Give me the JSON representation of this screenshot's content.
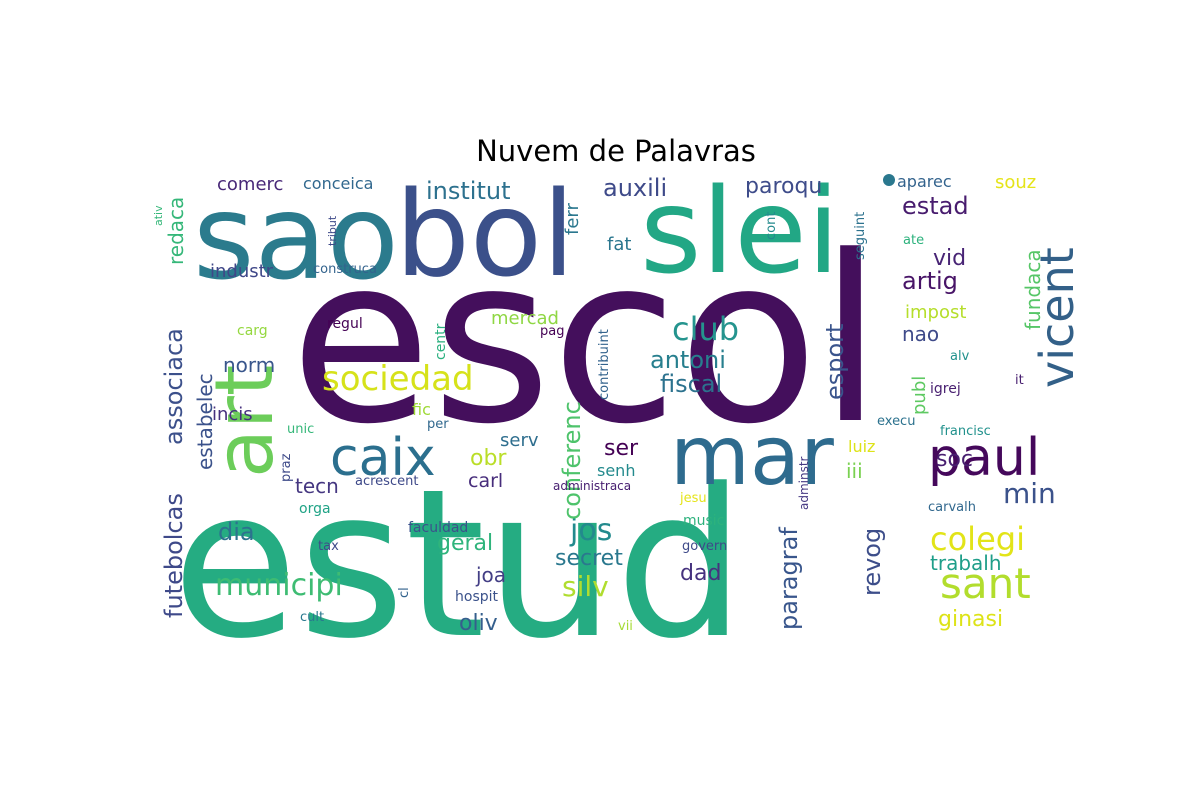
{
  "chart_data": {
    "type": "wordcloud",
    "title": "Nuvem de Palavras",
    "colormap": "viridis",
    "background": "#ffffff",
    "words": [
      {
        "text": "escol",
        "weight": 100,
        "color": "#440f5c",
        "vertical": false
      },
      {
        "text": "estud",
        "weight": 96,
        "color": "#25ac82",
        "vertical": false
      },
      {
        "text": "sao",
        "weight": 55,
        "color": "#2b7b8d",
        "vertical": false
      },
      {
        "text": "bol",
        "weight": 55,
        "color": "#3b508a",
        "vertical": false
      },
      {
        "text": "slei",
        "weight": 55,
        "color": "#22a785",
        "vertical": false
      },
      {
        "text": "mar",
        "weight": 48,
        "color": "#2e6b8e",
        "vertical": false
      },
      {
        "text": "art",
        "weight": 45,
        "color": "#6ccd5a",
        "vertical": true
      },
      {
        "text": "paul",
        "weight": 30,
        "color": "#45085b",
        "vertical": false
      },
      {
        "text": "caix",
        "weight": 30,
        "color": "#2b6f8e",
        "vertical": false
      },
      {
        "text": "vicent",
        "weight": 28,
        "color": "#336088",
        "vertical": true
      },
      {
        "text": "sant",
        "weight": 25,
        "color": "#b2dd2d",
        "vertical": false
      },
      {
        "text": "sociedad",
        "weight": 20,
        "color": "#d6e21a",
        "vertical": false
      },
      {
        "text": "club",
        "weight": 19,
        "color": "#25948e",
        "vertical": false
      },
      {
        "text": "municipi",
        "weight": 18,
        "color": "#3ebc73",
        "vertical": false
      },
      {
        "text": "jos",
        "weight": 18,
        "color": "#238a8d",
        "vertical": false
      },
      {
        "text": "colegi",
        "weight": 18,
        "color": "#e2e418",
        "vertical": false
      },
      {
        "text": "futebolcas",
        "weight": 16,
        "color": "#3e4989",
        "vertical": true
      },
      {
        "text": "associaca",
        "weight": 16,
        "color": "#3c508b",
        "vertical": true
      },
      {
        "text": "conferenc",
        "weight": 16,
        "color": "#4ec36b",
        "vertical": true
      },
      {
        "text": "paragraf",
        "weight": 16,
        "color": "#39568c",
        "vertical": true
      },
      {
        "text": "silv",
        "weight": 16,
        "color": "#b0dd2f",
        "vertical": false
      },
      {
        "text": "min",
        "weight": 16,
        "color": "#3b528b",
        "vertical": false
      },
      {
        "text": "institut",
        "weight": 15,
        "color": "#2d718e",
        "vertical": false
      },
      {
        "text": "auxili",
        "weight": 15,
        "color": "#3e4a89",
        "vertical": false
      },
      {
        "text": "estad",
        "weight": 15,
        "color": "#481c6e",
        "vertical": false
      },
      {
        "text": "antoni",
        "weight": 15,
        "color": "#277f8e",
        "vertical": false
      },
      {
        "text": "fiscal",
        "weight": 15,
        "color": "#2c728e",
        "vertical": false
      },
      {
        "text": "artig",
        "weight": 15,
        "color": "#481467",
        "vertical": false
      },
      {
        "text": "esport",
        "weight": 14,
        "color": "#3a548c",
        "vertical": true
      },
      {
        "text": "revog",
        "weight": 14,
        "color": "#3d4e8a",
        "vertical": true
      },
      {
        "text": "paroqu",
        "weight": 14,
        "color": "#3e4c8a",
        "vertical": false
      },
      {
        "text": "vid",
        "weight": 14,
        "color": "#482475",
        "vertical": false
      },
      {
        "text": "soc",
        "weight": 14,
        "color": "#481f70",
        "vertical": false
      },
      {
        "text": "dia",
        "weight": 14,
        "color": "#2c728e",
        "vertical": false
      },
      {
        "text": "secret",
        "weight": 14,
        "color": "#2a788e",
        "vertical": false
      },
      {
        "text": "geral",
        "weight": 14,
        "color": "#2fb47c",
        "vertical": false
      },
      {
        "text": "oliv",
        "weight": 14,
        "color": "#355f8d",
        "vertical": false
      },
      {
        "text": "ginasi",
        "weight": 13,
        "color": "#dde318",
        "vertical": false
      },
      {
        "text": "obr",
        "weight": 13,
        "color": "#bade28",
        "vertical": false
      },
      {
        "text": "ser",
        "weight": 13,
        "color": "#440154",
        "vertical": false
      },
      {
        "text": "fundaca",
        "weight": 13,
        "color": "#56c667",
        "vertical": true
      },
      {
        "text": "redaca",
        "weight": 13,
        "color": "#35b779",
        "vertical": true
      },
      {
        "text": "estabelec",
        "weight": 13,
        "color": "#3b528b",
        "vertical": true
      },
      {
        "text": "trabalh",
        "weight": 12,
        "color": "#1f9e89",
        "vertical": false
      },
      {
        "text": "dad",
        "weight": 12,
        "color": "#46327e",
        "vertical": false
      },
      {
        "text": "joa",
        "weight": 12,
        "color": "#433e85",
        "vertical": false
      },
      {
        "text": "tecn",
        "weight": 12,
        "color": "#453781",
        "vertical": false
      },
      {
        "text": "norm",
        "weight": 12,
        "color": "#39568c",
        "vertical": false
      },
      {
        "text": "nao",
        "weight": 12,
        "color": "#3e4a89",
        "vertical": false
      },
      {
        "text": "iii",
        "weight": 12,
        "color": "#7ad151",
        "vertical": false
      },
      {
        "text": "carl",
        "weight": 11,
        "color": "#472d7b",
        "vertical": false
      },
      {
        "text": "mercad",
        "weight": 11,
        "color": "#8fd744",
        "vertical": false
      },
      {
        "text": "comerc",
        "weight": 11,
        "color": "#482878",
        "vertical": false
      },
      {
        "text": "conceica",
        "weight": 10,
        "color": "#31688e",
        "vertical": false
      },
      {
        "text": "aparec",
        "weight": 10,
        "color": "#33638d",
        "vertical": false
      },
      {
        "text": "souz",
        "weight": 10,
        "color": "#e5e419",
        "vertical": false
      },
      {
        "text": "ferr",
        "weight": 11,
        "color": "#2a778e",
        "vertical": true
      },
      {
        "text": "fat",
        "weight": 11,
        "color": "#2a768e",
        "vertical": false
      },
      {
        "text": "serv",
        "weight": 11,
        "color": "#2e6e8e",
        "vertical": false
      },
      {
        "text": "senh",
        "weight": 10,
        "color": "#238a8d",
        "vertical": false
      },
      {
        "text": "industr",
        "weight": 11,
        "color": "#3f4788",
        "vertical": false
      },
      {
        "text": "incis",
        "weight": 11,
        "color": "#46307e",
        "vertical": false
      },
      {
        "text": "impost",
        "weight": 11,
        "color": "#b5de2b",
        "vertical": false
      },
      {
        "text": "publ",
        "weight": 11,
        "color": "#5ec962",
        "vertical": true
      },
      {
        "text": "luiz",
        "weight": 10,
        "color": "#dde318",
        "vertical": false
      },
      {
        "text": "fic",
        "weight": 10,
        "color": "#a0da39",
        "vertical": false
      },
      {
        "text": "centr",
        "weight": 9,
        "color": "#2ab07f",
        "vertical": true
      },
      {
        "text": "contribuint",
        "weight": 9,
        "color": "#33638d",
        "vertical": true
      },
      {
        "text": "construca",
        "weight": 8,
        "color": "#33638d",
        "vertical": false
      },
      {
        "text": "regul",
        "weight": 8,
        "color": "#440154",
        "vertical": false
      },
      {
        "text": "carg",
        "weight": 8,
        "color": "#95d840",
        "vertical": false
      },
      {
        "text": "pag",
        "weight": 8,
        "color": "#440154",
        "vertical": false
      },
      {
        "text": "per",
        "weight": 8,
        "color": "#31688e",
        "vertical": false
      },
      {
        "text": "unic",
        "weight": 8,
        "color": "#35b779",
        "vertical": false
      },
      {
        "text": "praz",
        "weight": 8,
        "color": "#3e4a89",
        "vertical": true
      },
      {
        "text": "acrescent",
        "weight": 8,
        "color": "#3e4989",
        "vertical": false
      },
      {
        "text": "administraca",
        "weight": 8,
        "color": "#482071",
        "vertical": false
      },
      {
        "text": "adminstr",
        "weight": 8,
        "color": "#453882",
        "vertical": true
      },
      {
        "text": "jesu",
        "weight": 8,
        "color": "#e5e419",
        "vertical": false
      },
      {
        "text": "music",
        "weight": 8,
        "color": "#2db27d",
        "vertical": false
      },
      {
        "text": "govern",
        "weight": 8,
        "color": "#3e4a89",
        "vertical": false
      },
      {
        "text": "faculdad",
        "weight": 8,
        "color": "#3b528b",
        "vertical": false
      },
      {
        "text": "hospit",
        "weight": 8,
        "color": "#3b528b",
        "vertical": false
      },
      {
        "text": "orga",
        "weight": 8,
        "color": "#20a386",
        "vertical": false
      },
      {
        "text": "tax",
        "weight": 8,
        "color": "#3e4a89",
        "vertical": false
      },
      {
        "text": "cl",
        "weight": 8,
        "color": "#33638d",
        "vertical": true
      },
      {
        "text": "cult",
        "weight": 7,
        "color": "#2a788e",
        "vertical": false
      },
      {
        "text": "vii",
        "weight": 7,
        "color": "#a5db36",
        "vertical": false
      },
      {
        "text": "carvalh",
        "weight": 8,
        "color": "#31688e",
        "vertical": false
      },
      {
        "text": "francisc",
        "weight": 8,
        "color": "#21918c",
        "vertical": false
      },
      {
        "text": "execu",
        "weight": 8,
        "color": "#2c728e",
        "vertical": false
      },
      {
        "text": "igrej",
        "weight": 8,
        "color": "#481f70",
        "vertical": false
      },
      {
        "text": "alv",
        "weight": 7,
        "color": "#21918c",
        "vertical": false
      },
      {
        "text": "it",
        "weight": 7,
        "color": "#481f70",
        "vertical": false
      },
      {
        "text": "ate",
        "weight": 7,
        "color": "#2db27d",
        "vertical": false
      },
      {
        "text": "seguint",
        "weight": 7,
        "color": "#2c728e",
        "vertical": true
      },
      {
        "text": "cont",
        "weight": 7,
        "color": "#238a8d",
        "vertical": true
      },
      {
        "text": "tribut",
        "weight": 6,
        "color": "#3e4a89",
        "vertical": true
      },
      {
        "text": "ativ",
        "weight": 6,
        "color": "#35b779",
        "vertical": true
      }
    ]
  }
}
